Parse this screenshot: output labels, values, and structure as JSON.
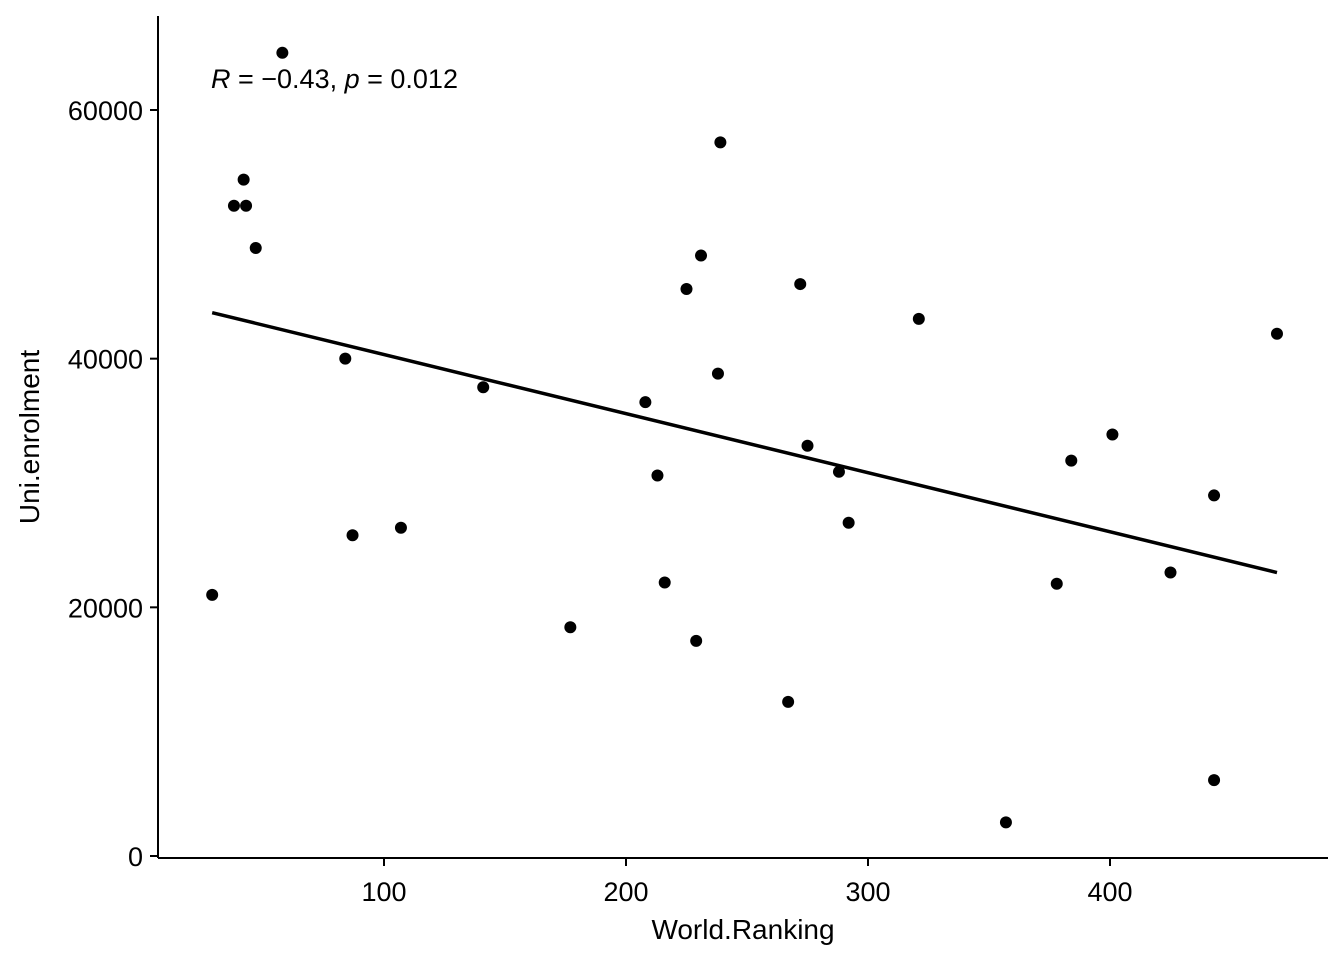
{
  "chart_data": {
    "type": "scatter",
    "xlabel": "World.Ranking",
    "ylabel": "Uni.enrolment",
    "xlim": [
      8,
      481
    ],
    "ylim": [
      0,
      67500
    ],
    "x_ticks": [
      100,
      200,
      300,
      400
    ],
    "x_tick_labels": [
      "100",
      "200",
      "300",
      "400"
    ],
    "y_ticks": [
      0,
      20000,
      40000,
      60000
    ],
    "y_tick_labels": [
      "0",
      "20000",
      "40000",
      "60000"
    ],
    "grid": false,
    "legend": "none",
    "annotation": {
      "r_symbol": "R",
      "r_text": " = −0.43, ",
      "p_symbol": "p",
      "p_text": " = 0.012"
    },
    "points": [
      {
        "x": 29,
        "y": 21000
      },
      {
        "x": 38,
        "y": 52300
      },
      {
        "x": 42,
        "y": 54400
      },
      {
        "x": 43,
        "y": 52300
      },
      {
        "x": 47,
        "y": 48900
      },
      {
        "x": 58,
        "y": 64600
      },
      {
        "x": 84,
        "y": 40000
      },
      {
        "x": 87,
        "y": 25800
      },
      {
        "x": 107,
        "y": 26400
      },
      {
        "x": 141,
        "y": 37700
      },
      {
        "x": 177,
        "y": 18400
      },
      {
        "x": 208,
        "y": 36500
      },
      {
        "x": 213,
        "y": 30600
      },
      {
        "x": 216,
        "y": 22000
      },
      {
        "x": 225,
        "y": 45600
      },
      {
        "x": 229,
        "y": 17300
      },
      {
        "x": 231,
        "y": 48300
      },
      {
        "x": 238,
        "y": 38800
      },
      {
        "x": 239,
        "y": 57400
      },
      {
        "x": 267,
        "y": 12400
      },
      {
        "x": 272,
        "y": 46000
      },
      {
        "x": 275,
        "y": 33000
      },
      {
        "x": 288,
        "y": 30900
      },
      {
        "x": 292,
        "y": 26800
      },
      {
        "x": 321,
        "y": 43200
      },
      {
        "x": 357,
        "y": 2700
      },
      {
        "x": 378,
        "y": 21900
      },
      {
        "x": 384,
        "y": 31800
      },
      {
        "x": 401,
        "y": 33900
      },
      {
        "x": 425,
        "y": 22800
      },
      {
        "x": 443,
        "y": 29000
      },
      {
        "x": 443,
        "y": 6100
      },
      {
        "x": 469,
        "y": 42000
      }
    ],
    "trendline": {
      "x": [
        29,
        469
      ],
      "y": [
        43700,
        22800
      ]
    }
  }
}
